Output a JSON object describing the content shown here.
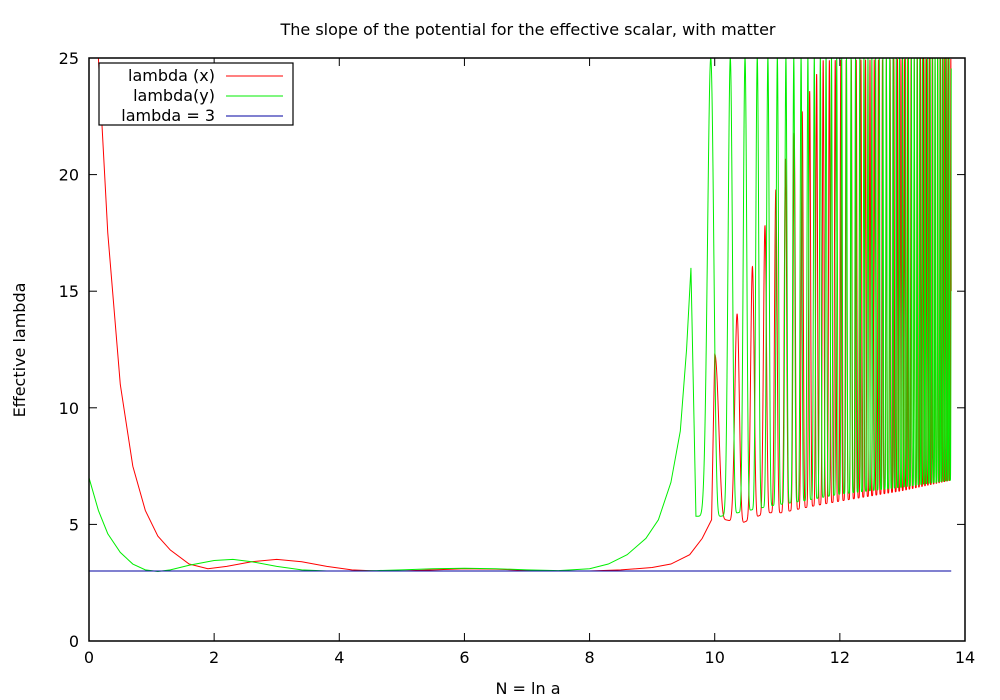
{
  "chart_data": {
    "type": "line",
    "title": "The slope of the potential for the effective scalar, with matter",
    "xlabel": "N = ln a",
    "ylabel": "Effective lambda",
    "xlim": [
      0,
      14
    ],
    "ylim": [
      0,
      25
    ],
    "xticks": [
      0,
      2,
      4,
      6,
      8,
      10,
      12,
      14
    ],
    "yticks": [
      0,
      5,
      10,
      15,
      20,
      25
    ],
    "grid": false,
    "legend_position": "top-left",
    "series": [
      {
        "name": "lambda (x)",
        "color": "#ff0000",
        "x": [
          0.0,
          0.15,
          0.3,
          0.5,
          0.7,
          0.9,
          1.1,
          1.3,
          1.6,
          1.9,
          2.2,
          2.6,
          3.0,
          3.4,
          3.8,
          4.2,
          4.6,
          5.0,
          5.5,
          6.0,
          6.5,
          7.0,
          7.5,
          8.0,
          8.5,
          9.0,
          9.3,
          9.6,
          9.8,
          9.95
        ],
        "y": [
          25.0,
          25.0,
          17.5,
          11.0,
          7.5,
          5.6,
          4.5,
          3.9,
          3.3,
          3.1,
          3.2,
          3.4,
          3.5,
          3.4,
          3.2,
          3.05,
          3.0,
          3.0,
          3.05,
          3.1,
          3.08,
          3.03,
          3.0,
          3.0,
          3.05,
          3.15,
          3.3,
          3.7,
          4.4,
          5.2
        ],
        "oscillation": {
          "x_start": 10.0,
          "x_end": 13.78,
          "phase_at_start": 3.14,
          "peaks": [
            [
              10.15,
              12.3
            ],
            [
              10.68,
              16.7
            ],
            [
              10.97,
              19.3
            ],
            [
              11.18,
              21.1
            ],
            [
              11.37,
              22.5
            ],
            [
              11.55,
              23.8
            ],
            [
              11.72,
              24.9
            ],
            [
              13.78,
              25.0
            ]
          ],
          "troughs": [
            [
              10.0,
              5.3
            ],
            [
              10.43,
              5.05
            ],
            [
              10.82,
              5.5
            ],
            [
              11.07,
              5.5
            ],
            [
              11.5,
              5.75
            ],
            [
              12.0,
              6.0
            ],
            [
              13.0,
              6.45
            ],
            [
              13.78,
              6.9
            ]
          ],
          "period_start": 0.58,
          "period_end": 0.04
        }
      },
      {
        "name": "lambda(y)",
        "color": "#00ee00",
        "x": [
          0.0,
          0.15,
          0.3,
          0.5,
          0.7,
          0.9,
          1.1,
          1.3,
          1.6,
          2.0,
          2.3,
          2.6,
          3.0,
          3.4,
          3.8,
          4.2,
          4.6,
          5.0,
          5.5,
          6.0,
          6.5,
          7.0,
          7.5,
          8.0,
          8.3,
          8.6,
          8.9,
          9.1,
          9.3,
          9.45,
          9.55,
          9.62
        ],
        "y": [
          7.0,
          5.6,
          4.6,
          3.8,
          3.3,
          3.05,
          2.98,
          3.05,
          3.25,
          3.45,
          3.5,
          3.4,
          3.2,
          3.05,
          3.0,
          3.0,
          3.02,
          3.05,
          3.1,
          3.12,
          3.1,
          3.05,
          3.02,
          3.1,
          3.3,
          3.7,
          4.4,
          5.2,
          6.8,
          9.0,
          12.5,
          16.0
        ],
        "oscillation": {
          "x_start": 9.7,
          "x_end": 13.78,
          "phase_at_start": 0.0,
          "peaks": [
            [
              9.75,
              25.0
            ],
            [
              13.78,
              25.0
            ]
          ],
          "troughs": [
            [
              10.1,
              5.35
            ],
            [
              10.55,
              5.6
            ],
            [
              10.9,
              5.8
            ],
            [
              11.4,
              6.0
            ],
            [
              12.0,
              6.3
            ],
            [
              13.0,
              6.6
            ],
            [
              13.78,
              6.9
            ]
          ],
          "period_start": 0.72,
          "period_end": 0.035
        }
      },
      {
        "name": "lambda = 3",
        "color": "#0000a0",
        "x": [
          0.0,
          13.78
        ],
        "y": [
          3.0,
          3.0
        ]
      }
    ]
  }
}
